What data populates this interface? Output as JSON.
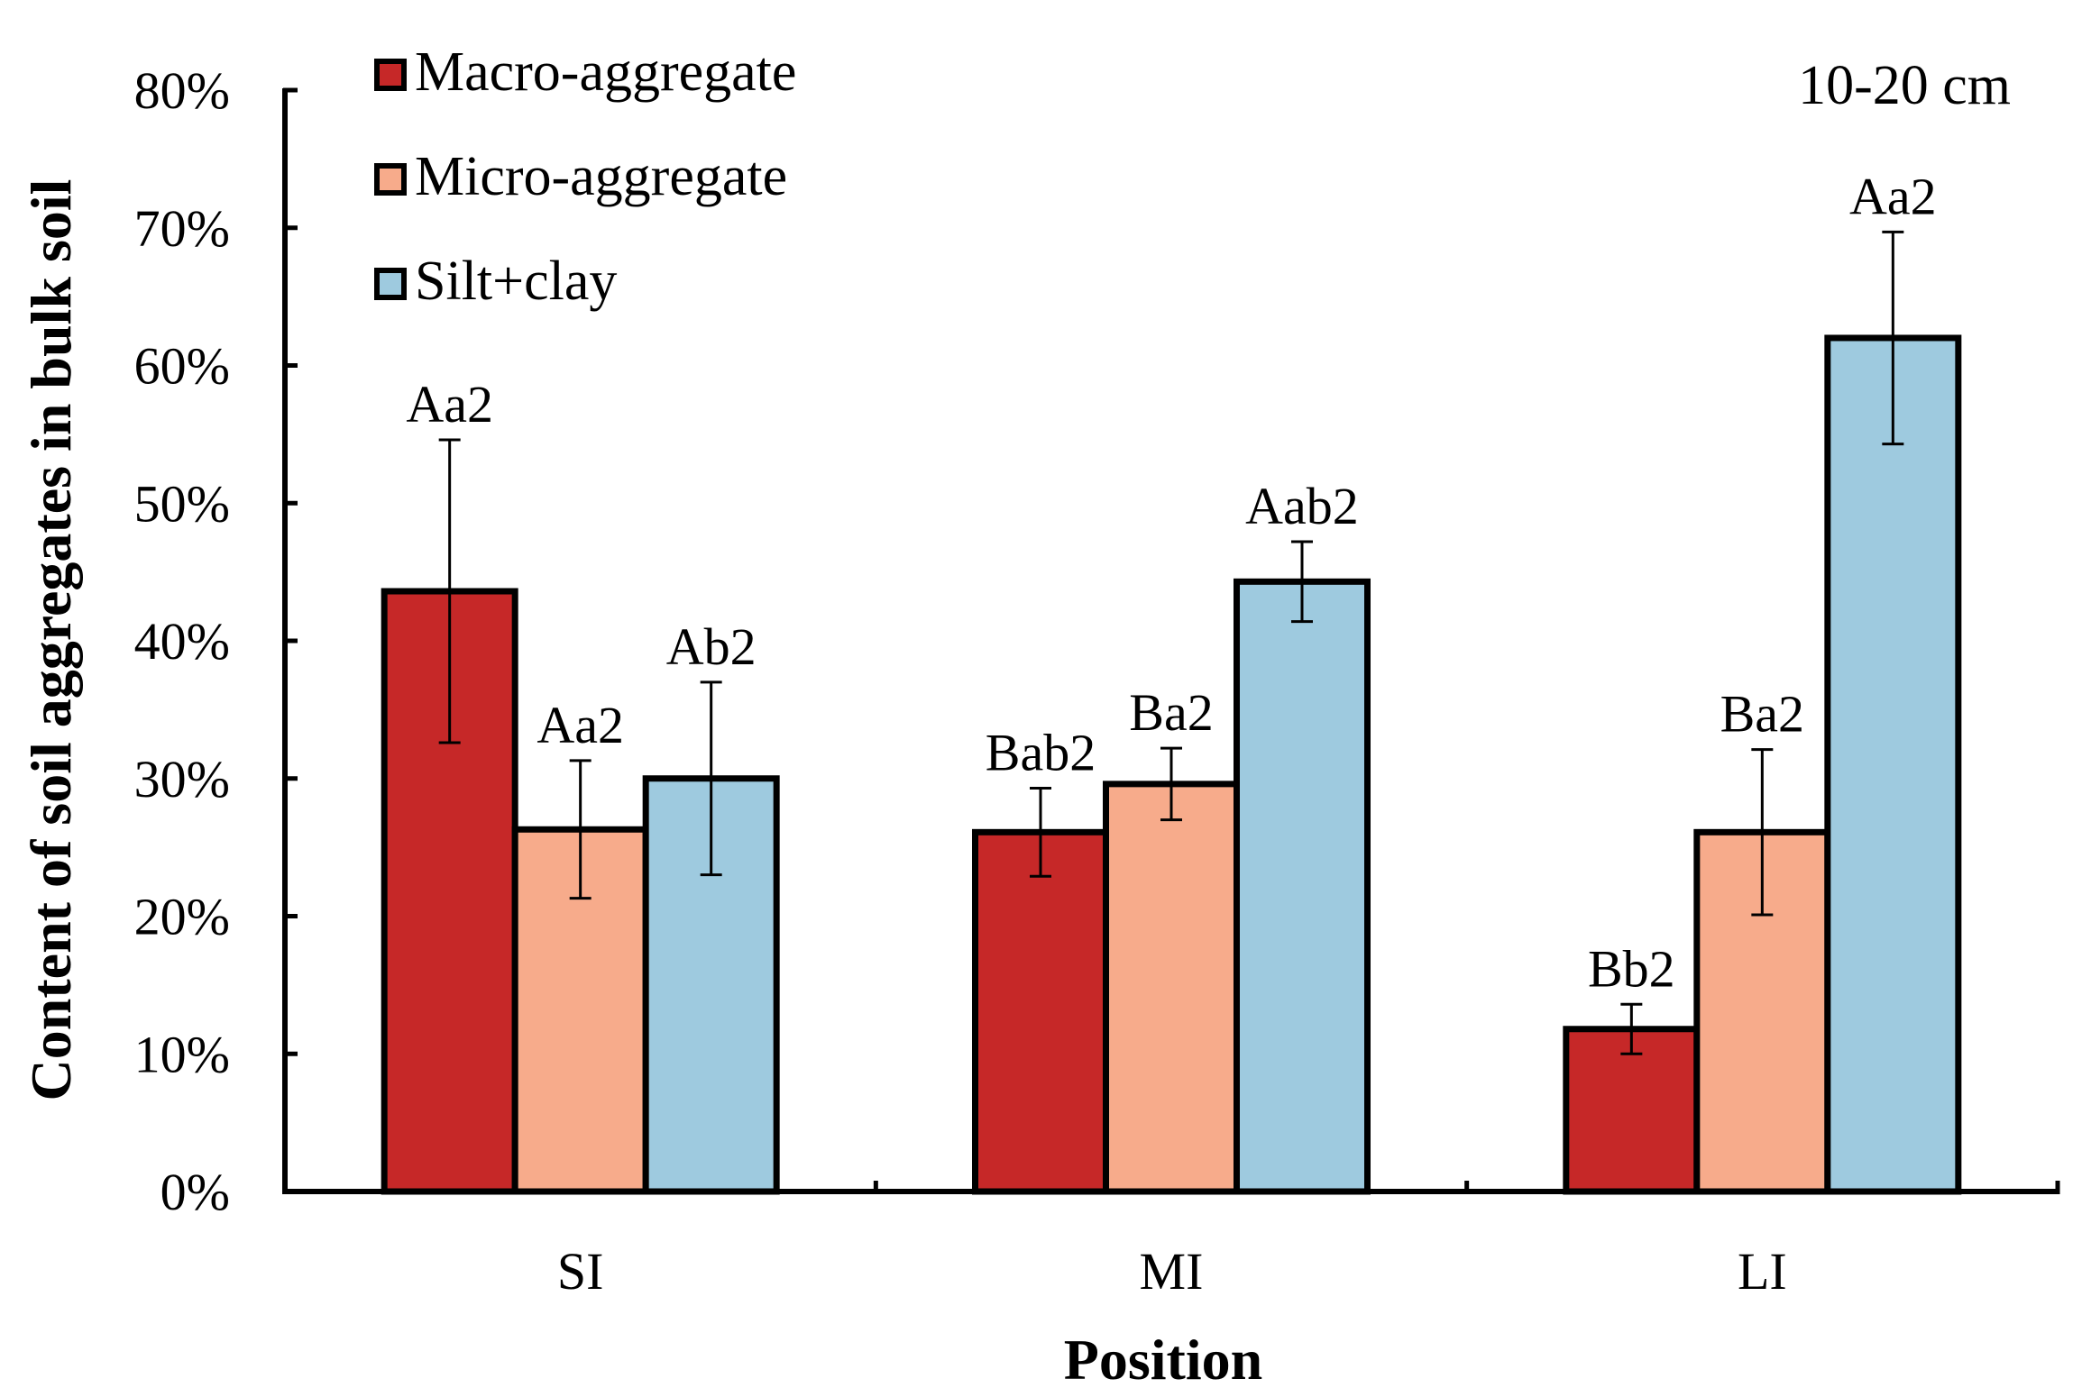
{
  "chart_data": {
    "type": "bar",
    "categories": [
      "SI",
      "MI",
      "LI"
    ],
    "series": [
      {
        "name": "Macro-aggregate",
        "color": "#c62828",
        "values": [
          43.6,
          26.1,
          11.8
        ],
        "errors": [
          11.0,
          3.2,
          1.8
        ],
        "labels": [
          "Aa2",
          "Bab2",
          "Bb2"
        ]
      },
      {
        "name": "Micro-aggregate",
        "color": "#f7ab8b",
        "values": [
          26.3,
          29.6,
          26.1
        ],
        "errors": [
          5.0,
          2.6,
          6.0
        ],
        "labels": [
          "Aa2",
          "Ba2",
          "Ba2"
        ]
      },
      {
        "name": "Silt+clay",
        "color": "#9ecadf",
        "values": [
          30.0,
          44.3,
          62.0
        ],
        "errors": [
          7.0,
          2.9,
          7.7
        ],
        "labels": [
          "Ab2",
          "Aab2",
          "Aa2"
        ]
      }
    ],
    "ylim": [
      0,
      80
    ],
    "ytick_values": [
      0,
      10,
      20,
      30,
      40,
      50,
      60,
      70,
      80
    ],
    "yticks": [
      "0%",
      "10%",
      "20%",
      "30%",
      "40%",
      "50%",
      "60%",
      "70%",
      "80%"
    ],
    "xlabel": "Position",
    "ylabel": "Content of soil aggregates in bulk soil",
    "annotation": "10-20 cm",
    "legend_position": "top-left",
    "grid": false
  }
}
